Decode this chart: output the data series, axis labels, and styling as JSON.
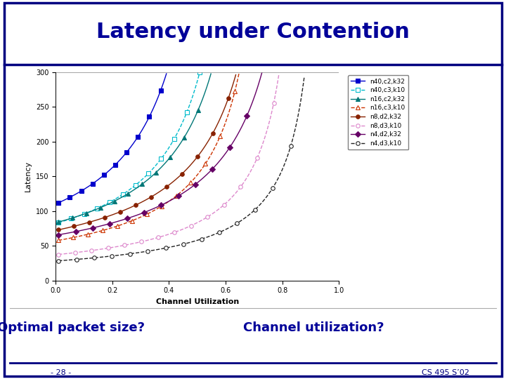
{
  "title": "Latency under Contention",
  "subtitle_left": "Optimal packet size?",
  "subtitle_right": "Channel utilization?",
  "footer_left": "- 28 -",
  "footer_right": "CS 495 S’02",
  "xlabel": "Channel Utilization",
  "ylabel": "Latency",
  "ylim": [
    0,
    300
  ],
  "xlim": [
    0,
    1
  ],
  "yticks": [
    0,
    50,
    100,
    150,
    200,
    250,
    300
  ],
  "xticks": [
    0,
    0.2,
    0.4,
    0.6,
    0.8,
    1
  ],
  "background_color": "#ffffff",
  "title_color": "#000099",
  "border_color": "#000080",
  "series": [
    {
      "label": "n40,c2,k32",
      "color": "#0000cc",
      "linestyle": "-",
      "marker": "s",
      "fillstyle": "full",
      "rho_max": 0.62,
      "base_latency": 110
    },
    {
      "label": "n40,c3,k10",
      "color": "#00bbcc",
      "linestyle": "--",
      "marker": "s",
      "fillstyle": "none",
      "rho_max": 0.7,
      "base_latency": 82
    },
    {
      "label": "n16,c2,k32",
      "color": "#007777",
      "linestyle": "-",
      "marker": "^",
      "fillstyle": "full",
      "rho_max": 0.76,
      "base_latency": 83
    },
    {
      "label": "n16,c3,k10",
      "color": "#cc3300",
      "linestyle": "--",
      "marker": "^",
      "fillstyle": "none",
      "rho_max": 0.8,
      "base_latency": 57
    },
    {
      "label": "n8,d2,k32",
      "color": "#882200",
      "linestyle": "-",
      "marker": "o",
      "fillstyle": "full",
      "rho_max": 0.84,
      "base_latency": 72
    },
    {
      "label": "n8,d3,k10",
      "color": "#dd88cc",
      "linestyle": "--",
      "marker": "o",
      "fillstyle": "none",
      "rho_max": 0.9,
      "base_latency": 37
    },
    {
      "label": "n4,d2,k32",
      "color": "#660066",
      "linestyle": "-",
      "marker": "D",
      "fillstyle": "full",
      "rho_max": 0.93,
      "base_latency": 65
    },
    {
      "label": "n4,d3,k10",
      "color": "#222222",
      "linestyle": "--",
      "marker": "o",
      "fillstyle": "none",
      "rho_max": 0.97,
      "base_latency": 28
    }
  ]
}
